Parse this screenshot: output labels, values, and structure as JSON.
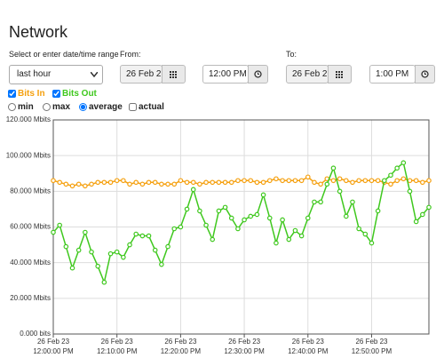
{
  "header": {
    "title": "Network"
  },
  "range": {
    "label": "Select or enter date/time range",
    "selected": "last hour",
    "from_label": "From:",
    "from_date": "26 Feb 2",
    "from_time": "12:00 PM",
    "to_label": "To:",
    "to_date": "26 Feb 2",
    "to_time": "1:00 PM"
  },
  "options": {
    "modes": [
      "min",
      "max",
      "average"
    ],
    "actual": "actual"
  },
  "chart_data": {
    "type": "line",
    "categories": [
      "26 Feb 23\n12:00:00 PM",
      null,
      null,
      null,
      null,
      null,
      null,
      null,
      null,
      null,
      "26 Feb 23\n12:10:00 PM",
      null,
      null,
      null,
      null,
      null,
      null,
      null,
      null,
      null,
      "26 Feb 23\n12:20:00 PM",
      null,
      null,
      null,
      null,
      null,
      null,
      null,
      null,
      null,
      "26 Feb 23\n12:30:00 PM",
      null,
      null,
      null,
      null,
      null,
      null,
      null,
      null,
      null,
      "26 Feb 23\n12:40:00 PM",
      null,
      null,
      null,
      null,
      null,
      null,
      null,
      null,
      null,
      "26 Feb 23\n12:50:00 PM",
      null,
      null,
      null,
      null,
      null,
      null,
      null,
      null,
      null
    ],
    "series": [
      {
        "name": "Bits In",
        "color": "#f5a00f",
        "values": [
          86,
          85,
          84,
          83,
          84,
          83,
          84,
          85,
          85,
          85,
          86,
          86,
          84,
          85,
          84,
          85,
          85,
          84,
          84,
          84,
          86,
          85,
          85,
          84,
          85,
          85,
          85,
          85,
          85,
          86,
          86,
          86,
          85,
          85,
          86,
          87,
          86,
          86,
          86,
          86,
          88,
          85,
          84,
          87,
          86,
          87,
          86,
          85,
          86,
          86,
          86,
          86,
          85,
          84,
          86,
          87,
          86,
          86,
          85,
          86
        ]
      },
      {
        "name": "Bits Out",
        "color": "#3fc81e",
        "values": [
          57,
          61,
          49,
          37,
          47,
          57,
          46,
          38,
          29,
          45,
          46,
          43,
          50,
          56,
          55,
          55,
          47,
          39,
          49,
          59,
          60,
          70,
          81,
          69,
          61,
          53,
          69,
          71,
          65,
          59,
          64,
          66,
          67,
          78,
          65,
          51,
          64,
          53,
          58,
          55,
          65,
          74,
          74,
          84,
          93,
          80,
          66,
          74,
          59,
          56,
          51,
          69,
          86,
          89,
          93,
          96,
          80,
          63,
          67,
          71
        ]
      }
    ],
    "ylim": [
      0,
      120
    ],
    "yticks": [
      {
        "value": 0,
        "label": "0.000 bits"
      },
      {
        "value": 20,
        "label": "20.000 Mbits"
      },
      {
        "value": 40,
        "label": "40.000 Mbits"
      },
      {
        "value": 60,
        "label": "60.000 Mbits"
      },
      {
        "value": 80,
        "label": "80.000 Mbits"
      },
      {
        "value": 100,
        "label": "100.000 Mbits"
      },
      {
        "value": 120,
        "label": "120.000 Mbits"
      }
    ],
    "grid": true
  }
}
